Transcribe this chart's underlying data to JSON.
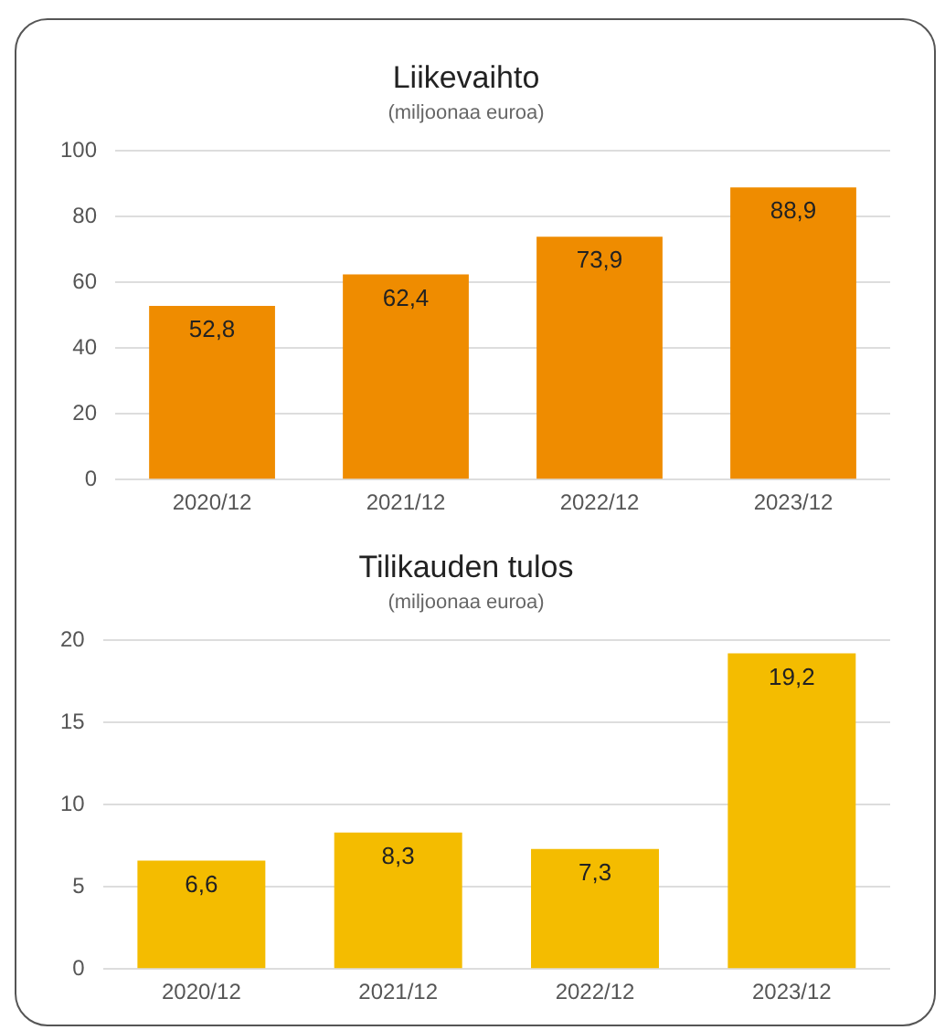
{
  "chart_data": [
    {
      "type": "bar",
      "title": "Liikevaihto",
      "subtitle": "(miljoonaa euroa)",
      "categories": [
        "2020/12",
        "2021/12",
        "2022/12",
        "2023/12"
      ],
      "values": [
        52.8,
        62.4,
        73.9,
        88.9
      ],
      "value_labels": [
        "52,8",
        "62,4",
        "73,9",
        "88,9"
      ],
      "color": "#ef8c00",
      "ylim": [
        0,
        100
      ],
      "yticks": [
        0,
        20,
        40,
        60,
        80,
        100
      ],
      "grid": "y",
      "legend": false
    },
    {
      "type": "bar",
      "title": "Tilikauden tulos",
      "subtitle": "(miljoonaa euroa)",
      "categories": [
        "2020/12",
        "2021/12",
        "2022/12",
        "2023/12"
      ],
      "values": [
        6.6,
        8.3,
        7.3,
        19.2
      ],
      "value_labels": [
        "6,6",
        "8,3",
        "7,3",
        "19,2"
      ],
      "color": "#f4bc00",
      "ylim": [
        0,
        20
      ],
      "yticks": [
        0,
        5,
        10,
        15,
        20
      ],
      "grid": "y",
      "legend": false
    }
  ]
}
